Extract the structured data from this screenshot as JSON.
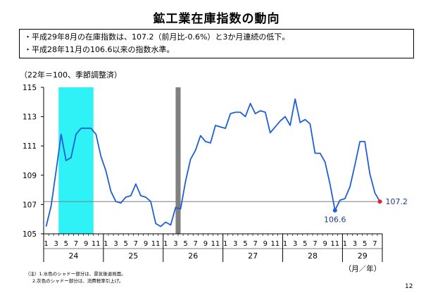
{
  "header": {
    "title": "鉱工業在庫指数の動向",
    "notes": [
      "・平成29年8月の在庫指数は、107.2（前月比-0.6%）と3か月連続の低下。",
      "・平成28年11月の106.6以来の指数水準。"
    ]
  },
  "chart_data": {
    "type": "line",
    "title": "",
    "unit_label": "（22年＝100、季節調整済）",
    "xlabel": "（月／年）",
    "ylabel": "",
    "ylim": [
      105,
      115
    ],
    "yticks": [
      "105",
      "107",
      "109",
      "111",
      "113",
      "115"
    ],
    "reference_line": 107.2,
    "grid": false,
    "month_labels": [
      "1",
      "3",
      "5",
      "7",
      "9",
      "11",
      "1",
      "3",
      "5",
      "7",
      "9",
      "11",
      "1",
      "3",
      "5",
      "7",
      "9",
      "11",
      "1",
      "3",
      "5",
      "7",
      "9",
      "11",
      "1",
      "3",
      "5",
      "7",
      "9",
      "11",
      "1",
      "3",
      "5",
      "7"
    ],
    "years": [
      {
        "label": "24",
        "start": 0,
        "count": 12
      },
      {
        "label": "25",
        "start": 12,
        "count": 12
      },
      {
        "label": "26",
        "start": 24,
        "count": 12
      },
      {
        "label": "27",
        "start": 36,
        "count": 12
      },
      {
        "label": "28",
        "start": 48,
        "count": 12
      },
      {
        "label": "29",
        "start": 60,
        "count": 8
      }
    ],
    "shaded_periods": [
      {
        "kind": "recession",
        "from": 3,
        "to": 10,
        "color": "#2ef2f6"
      },
      {
        "kind": "consumption-tax",
        "from": 26.5,
        "to": 27.5,
        "color": "#808080"
      }
    ],
    "series": [
      {
        "color": "#1f5fd6",
        "values": [
          105.5,
          106.9,
          109.3,
          111.8,
          110.0,
          110.2,
          111.8,
          112.2,
          112.2,
          112.2,
          111.8,
          110.3,
          109.3,
          107.9,
          107.2,
          107.1,
          107.5,
          107.6,
          108.4,
          107.6,
          107.5,
          107.2,
          105.7,
          105.5,
          105.8,
          105.6,
          106.8,
          106.7,
          108.6,
          110.1,
          110.7,
          111.7,
          111.3,
          111.2,
          112.4,
          112.3,
          112.2,
          113.2,
          113.3,
          113.3,
          113.0,
          113.9,
          113.2,
          113.4,
          113.3,
          111.9,
          112.3,
          112.7,
          113.0,
          112.4,
          114.2,
          112.6,
          112.8,
          112.5,
          110.5,
          110.5,
          109.9,
          108.4,
          106.6,
          107.3,
          107.4,
          108.2,
          109.7,
          111.3,
          111.3,
          109.1,
          107.8,
          107.2
        ]
      }
    ],
    "annotations": [
      {
        "text": "106.6",
        "index": 58,
        "value": 106.6
      },
      {
        "text": "107.2",
        "index": 67,
        "value": 107.2
      }
    ]
  },
  "footer": {
    "notes": [
      "（注）1.水色のシャドー部分は、景気後退局面。",
      "2.灰色のシャドー部分は、消費税率引上げ。"
    ],
    "page_number": "12"
  }
}
